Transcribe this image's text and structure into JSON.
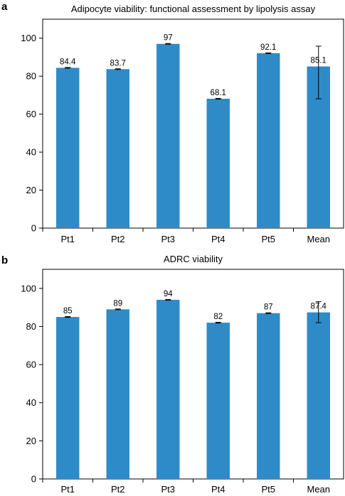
{
  "chart_data": [
    {
      "panel": "a",
      "type": "bar",
      "title": "Adipocyte viability: functional assessment by lipolysis assay",
      "xlabel": "",
      "ylabel": "",
      "categories": [
        "Pt1",
        "Pt2",
        "Pt3",
        "Pt4",
        "Pt5",
        "Mean"
      ],
      "values": [
        84.4,
        83.7,
        97,
        68.1,
        92.1,
        85.1
      ],
      "data_labels": [
        "84.4",
        "83.7",
        "97",
        "68.1",
        "92.1",
        "85.1"
      ],
      "error_low": [
        0.2,
        0.2,
        0.2,
        0.2,
        0.2,
        17
      ],
      "error_high": [
        0.2,
        0.2,
        0.2,
        0.2,
        0.2,
        10.7
      ],
      "yticks": [
        0,
        20,
        40,
        60,
        80,
        100
      ],
      "ylim": [
        0,
        110
      ],
      "grid": false,
      "bar_color": "#2e8bc7"
    },
    {
      "panel": "b",
      "type": "bar",
      "title": "ADRC viability",
      "xlabel": "",
      "ylabel": "",
      "categories": [
        "Pt1",
        "Pt2",
        "Pt3",
        "Pt4",
        "Pt5",
        "Mean"
      ],
      "values": [
        85,
        89,
        94,
        82,
        87,
        87.4
      ],
      "data_labels": [
        "85",
        "89",
        "94",
        "82",
        "87",
        "87.4"
      ],
      "error_low": [
        0.2,
        0.2,
        0.2,
        0.2,
        0.2,
        5.4
      ],
      "error_high": [
        0.2,
        0.2,
        0.2,
        0.2,
        0.2,
        5.6
      ],
      "yticks": [
        0,
        20,
        40,
        60,
        80,
        100
      ],
      "ylim": [
        0,
        110
      ],
      "grid": false,
      "bar_color": "#2e8bc7"
    }
  ]
}
